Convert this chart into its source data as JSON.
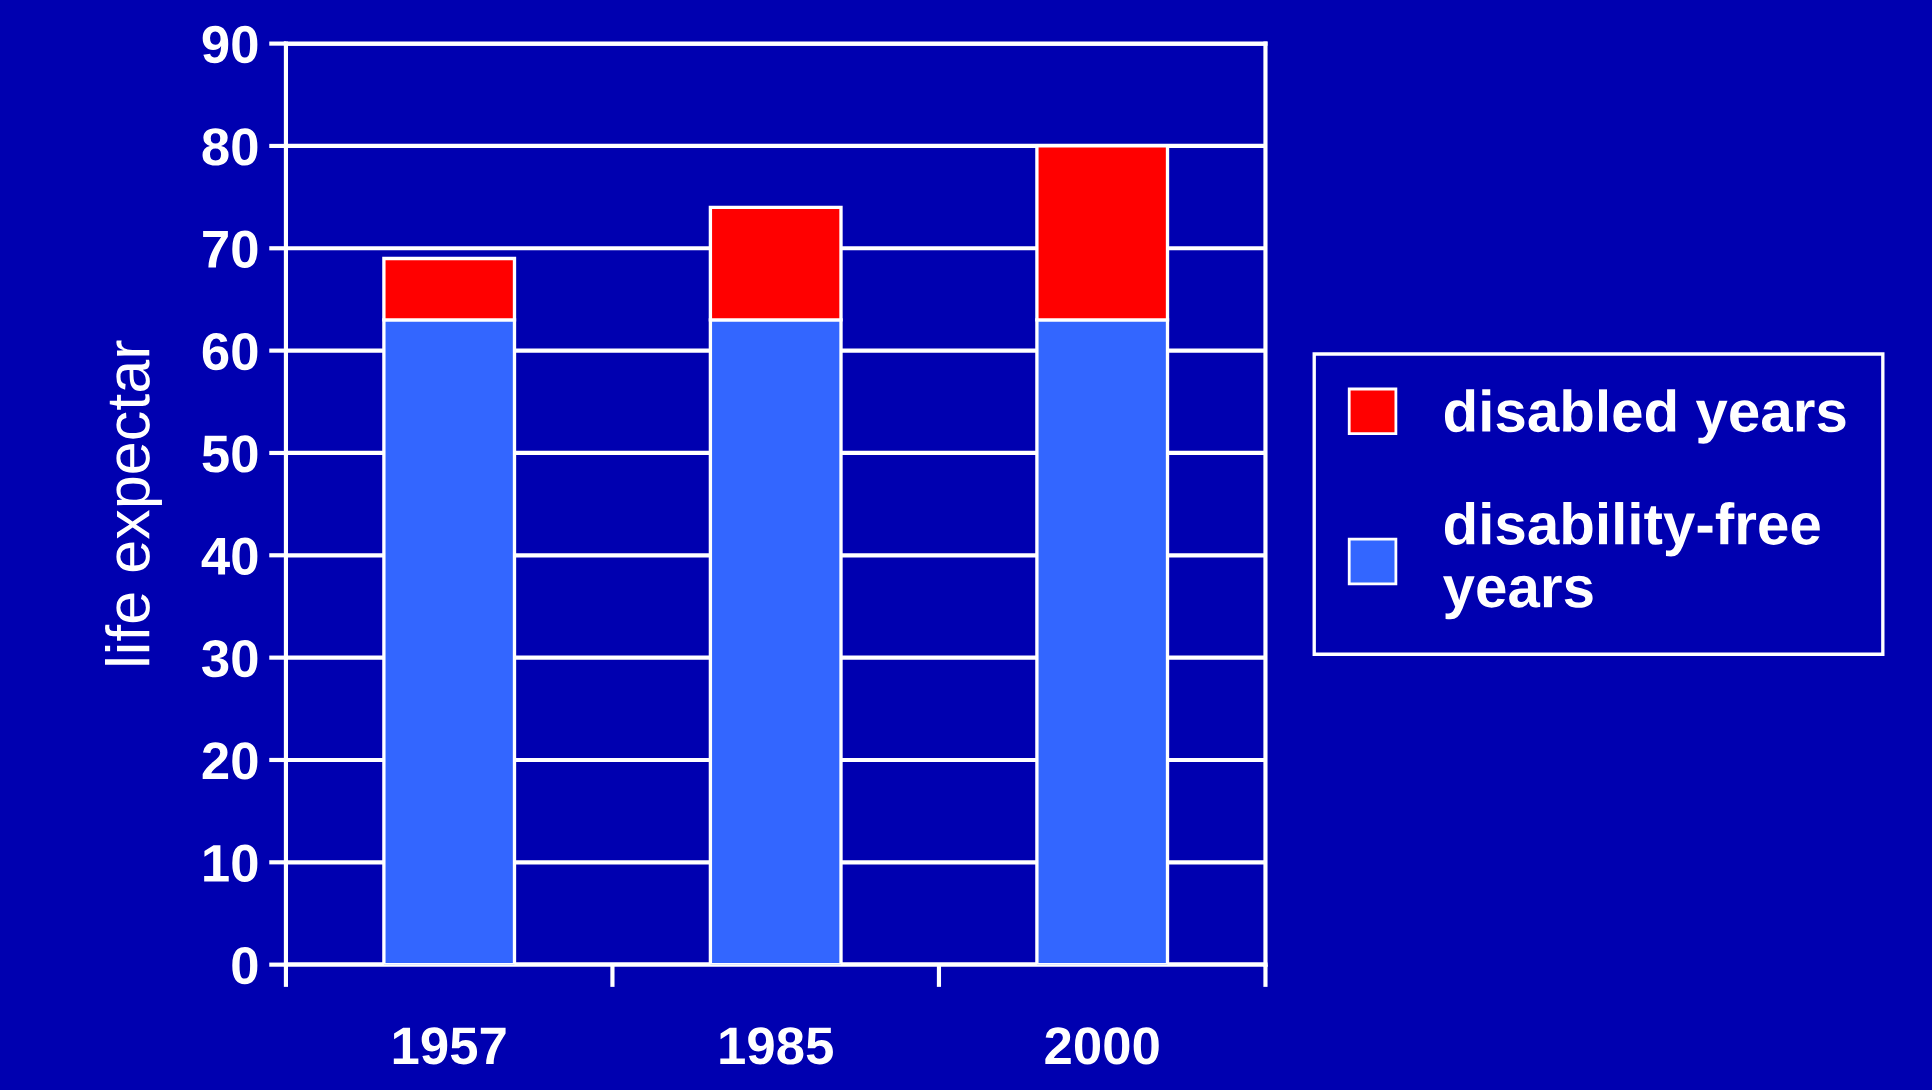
{
  "chart_data": {
    "type": "bar",
    "stacked": true,
    "ylabel": "life expectar",
    "categories": [
      "1957",
      "1985",
      "2000"
    ],
    "series": [
      {
        "name": "disability-free\nyears",
        "color": "#3366ff",
        "values": [
          63,
          63,
          63
        ]
      },
      {
        "name": "disabled years",
        "color": "#ff0000",
        "values": [
          6,
          11,
          17
        ]
      }
    ],
    "ylim": [
      0,
      90
    ],
    "yticks": [
      0,
      10,
      20,
      30,
      40,
      50,
      60,
      70,
      80,
      90
    ],
    "grid": "y",
    "legend": "right"
  }
}
